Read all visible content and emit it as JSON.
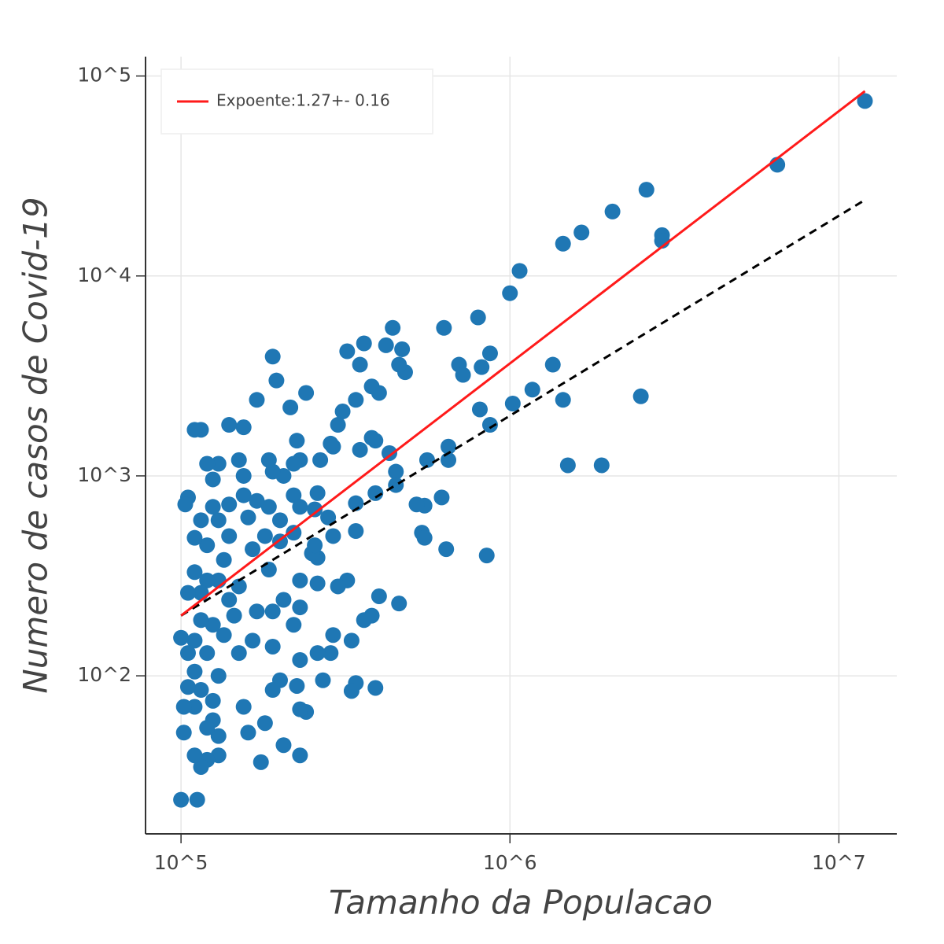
{
  "chart_data": {
    "type": "scatter",
    "xlabel": "Tamanho da Populacao",
    "ylabel": "Numero de casos de Covid-19",
    "xscale": "log",
    "yscale": "log",
    "grid": true,
    "legend": "upper left",
    "xlim": [
      78000,
      15000000
    ],
    "ylim": [
      16.2,
      125000
    ],
    "xticks": [
      {
        "value": 100000,
        "label": "10^5"
      },
      {
        "value": 1000000,
        "label": "10^6"
      },
      {
        "value": 10000000,
        "label": "10^7"
      }
    ],
    "yticks": [
      {
        "value": 100,
        "label": "10^2"
      },
      {
        "value": 1000,
        "label": "10^3"
      },
      {
        "value": 10000,
        "label": "10^4"
      },
      {
        "value": 100000,
        "label": "10^5"
      }
    ],
    "color": "#1f77b4",
    "x": [
      12000000,
      6500000,
      2600000,
      2050000,
      2900000,
      2900000,
      1650000,
      1450000,
      1070000,
      1000000,
      2500000,
      1900000,
      1500000,
      1450000,
      1350000,
      1170000,
      1020000,
      870000,
      870000,
      800000,
      810000,
      820000,
      850000,
      700000,
      720000,
      650000,
      650000,
      630000,
      620000,
      640000,
      560000,
      540000,
      550000,
      550000,
      520000,
      470000,
      480000,
      460000,
      440000,
      420000,
      430000,
      450000,
      450000,
      460000,
      400000,
      380000,
      360000,
      350000,
      340000,
      350000,
      390000,
      380000,
      390000,
      380000,
      390000,
      400000,
      360000,
      340000,
      340000,
      340000,
      330000,
      330000,
      320000,
      310000,
      300000,
      290000,
      285000,
      280000,
      290000,
      320000,
      300000,
      285000,
      290000,
      270000,
      265000,
      260000,
      255000,
      260000,
      250000,
      255000,
      260000,
      260000,
      240000,
      240000,
      230000,
      225000,
      230000,
      220000,
      220000,
      230000,
      220000,
      230000,
      230000,
      220000,
      230000,
      225000,
      230000,
      215000,
      205000,
      200000,
      200000,
      205000,
      200000,
      205000,
      195000,
      190000,
      190000,
      185000,
      185000,
      180000,
      185000,
      190000,
      190000,
      190000,
      170000,
      170000,
      160000,
      165000,
      170000,
      165000,
      175000,
      180000,
      155000,
      155000,
      155000,
      150000,
      150000,
      145000,
      150000,
      160000,
      155000,
      140000,
      140000,
      140000,
      140000,
      135000,
      135000,
      130000,
      130000,
      130000,
      130000,
      130000,
      130000,
      125000,
      125000,
      125000,
      125000,
      125000,
      120000,
      120000,
      120000,
      120000,
      120000,
      120000,
      115000,
      115000,
      115000,
      115000,
      115000,
      115000,
      112000,
      110000,
      110000,
      110000,
      110000,
      110000,
      110000,
      110000,
      105000,
      105000,
      105000,
      105000,
      103000,
      102000,
      102000,
      100000,
      100000
    ],
    "values": [
      75000,
      36000,
      27000,
      21000,
      16000,
      15000,
      16500,
      14500,
      10600,
      8200,
      2500,
      1130,
      1130,
      2400,
      3600,
      2700,
      2300,
      4100,
      1800,
      6200,
      2150,
      3500,
      400,
      3600,
      3200,
      1400,
      1200,
      5500,
      780,
      430,
      1200,
      520,
      490,
      710,
      720,
      4300,
      3300,
      3600,
      5500,
      4500,
      1300,
      1050,
      900,
      230,
      2600,
      2800,
      4600,
      3600,
      2400,
      1350,
      1500,
      1550,
      820,
      200,
      87,
      250,
      190,
      530,
      730,
      92,
      84,
      150,
      4200,
      2100,
      1800,
      1400,
      1450,
      620,
      500,
      300,
      280,
      130,
      160,
      95,
      1200,
      820,
      680,
      390,
      410,
      450,
      290,
      130,
      2600,
      66,
      68,
      1500,
      1200,
      1150,
      800,
      700,
      520,
      300,
      220,
      180,
      120,
      89,
      40,
      2200,
      1000,
      600,
      470,
      240,
      95,
      45,
      3000,
      3950,
      1050,
      1200,
      700,
      500,
      340,
      210,
      140,
      85,
      2400,
      750,
      620,
      430,
      210,
      150,
      37,
      58,
      1750,
      1000,
      800,
      1200,
      280,
      200,
      130,
      52,
      70,
      1800,
      720,
      500,
      240,
      380,
      160,
      1150,
      600,
      300,
      100,
      40,
      50,
      960,
      700,
      180,
      75,
      60,
      1150,
      450,
      300,
      130,
      55,
      38,
      1700,
      600,
      260,
      190,
      85,
      35,
      24,
      1700,
      490,
      330,
      150,
      105,
      40,
      70,
      780,
      260,
      130,
      88,
      720,
      70,
      52,
      155,
      24
    ],
    "fit_line": {
      "name": "Expoente:1.27+- 0.16",
      "color": "#ff1a1a",
      "x": [
        100000,
        12000000
      ],
      "values": [
        200,
        84000
      ]
    },
    "reference_line": {
      "color": "#000000",
      "style": "dashed",
      "x": [
        100000,
        12000000
      ],
      "values": [
        200,
        24000
      ]
    }
  }
}
